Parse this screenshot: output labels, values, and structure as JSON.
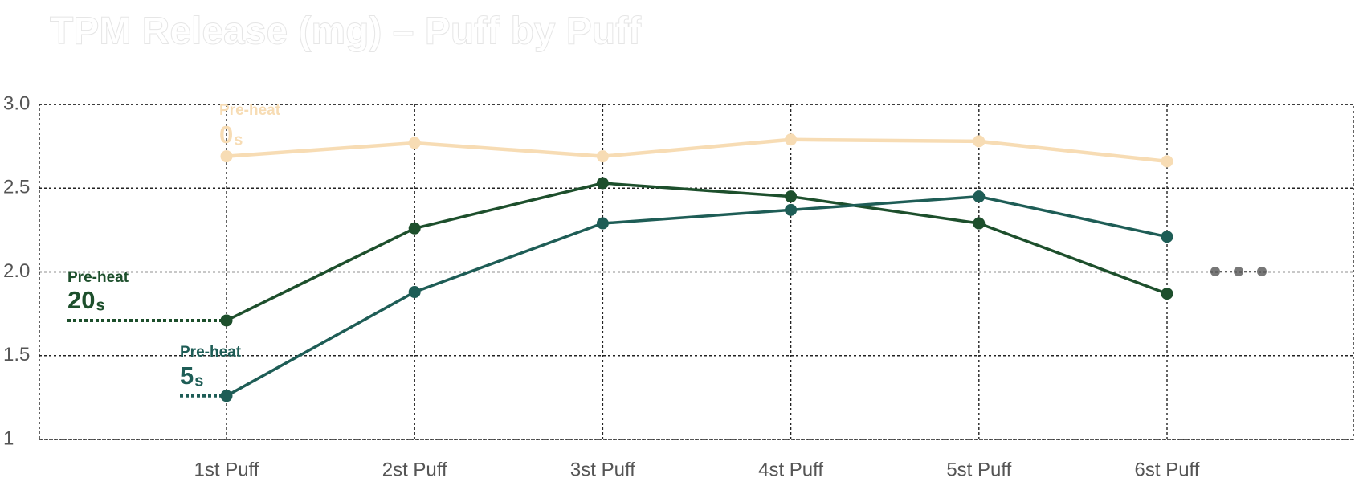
{
  "chart_data": {
    "type": "line",
    "title": "TPM Release (mg) – Puff by Puff",
    "categories": [
      "1st Puff",
      "2st Puff",
      "3st Puff",
      "4st Puff",
      "5st Puff",
      "6st Puff"
    ],
    "ylim": [
      1,
      3
    ],
    "yticks": [
      1,
      1.5,
      {
        "value": 2,
        "label": "2.0"
      },
      2.5,
      {
        "value": 3,
        "label": "3.0"
      }
    ],
    "grid": true,
    "series": [
      {
        "name": "0",
        "unit": "s",
        "label_top": "Pre-heat",
        "color": "#f7dcb4",
        "values": [
          2.69,
          2.77,
          2.69,
          2.79,
          2.78,
          2.66
        ]
      },
      {
        "name": "20",
        "unit": "s",
        "label_top": "Pre-heat",
        "color": "#1d4f2c",
        "values": [
          1.71,
          2.26,
          2.53,
          2.45,
          2.29,
          1.87
        ]
      },
      {
        "name": "5",
        "unit": "s",
        "label_top": "Pre-heat",
        "color": "#1e5d56",
        "values": [
          1.26,
          1.88,
          2.29,
          2.37,
          2.45,
          2.21
        ]
      }
    ]
  }
}
